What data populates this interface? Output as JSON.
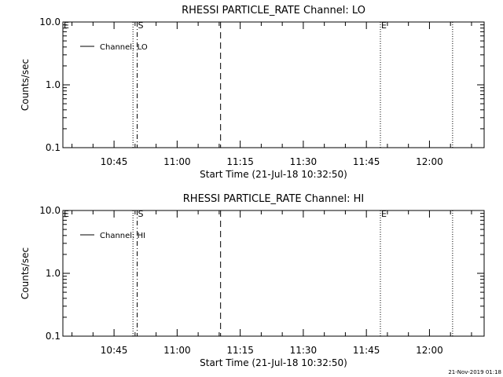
{
  "footer": {
    "timestamp": "21-Nov-2019 01:18"
  },
  "chart_data": [
    {
      "type": "line",
      "title": "RHESSI PARTICLE_RATE Channel: LO",
      "xlabel": "Start Time (21-Jul-18 10:32:50)",
      "ylabel": "Counts/sec",
      "yscale": "log",
      "ylim": [
        0.1,
        10.0
      ],
      "xlim": [
        "10:32:50",
        "12:13:00"
      ],
      "x_ticks": [
        "10:45",
        "11:00",
        "11:15",
        "11:30",
        "11:45",
        "12:00"
      ],
      "y_ticks": [
        "0.1",
        "1.0",
        "10.0"
      ],
      "legend": {
        "position": "top-left",
        "entries": [
          "Channel: LO"
        ]
      },
      "series": [
        {
          "name": "Channel: LO",
          "values": []
        }
      ],
      "markers": [
        {
          "time": "10:49:30",
          "style": "dotted",
          "label": ""
        },
        {
          "time": "10:50:30",
          "style": "dashdot",
          "label": "S"
        },
        {
          "time": "11:10:20",
          "style": "dashed",
          "label": ""
        },
        {
          "time": "11:48:20",
          "style": "dotted",
          "label": "E"
        },
        {
          "time": "12:05:30",
          "style": "dotted",
          "label": ""
        }
      ],
      "corner_label": "E",
      "grid": false
    },
    {
      "type": "line",
      "title": "RHESSI PARTICLE_RATE Channel: HI",
      "xlabel": "Start Time (21-Jul-18 10:32:50)",
      "ylabel": "Counts/sec",
      "yscale": "log",
      "ylim": [
        0.1,
        10.0
      ],
      "xlim": [
        "10:32:50",
        "12:13:00"
      ],
      "x_ticks": [
        "10:45",
        "11:00",
        "11:15",
        "11:30",
        "11:45",
        "12:00"
      ],
      "y_ticks": [
        "0.1",
        "1.0",
        "10.0"
      ],
      "legend": {
        "position": "top-left",
        "entries": [
          "Channel: HI"
        ]
      },
      "series": [
        {
          "name": "Channel: HI",
          "values": []
        }
      ],
      "markers": [
        {
          "time": "10:49:30",
          "style": "dotted",
          "label": ""
        },
        {
          "time": "10:50:30",
          "style": "dashdot",
          "label": "S"
        },
        {
          "time": "11:10:20",
          "style": "dashed",
          "label": ""
        },
        {
          "time": "11:48:20",
          "style": "dotted",
          "label": "E"
        },
        {
          "time": "12:05:30",
          "style": "dotted",
          "label": ""
        }
      ],
      "corner_label": "E",
      "grid": false
    }
  ]
}
